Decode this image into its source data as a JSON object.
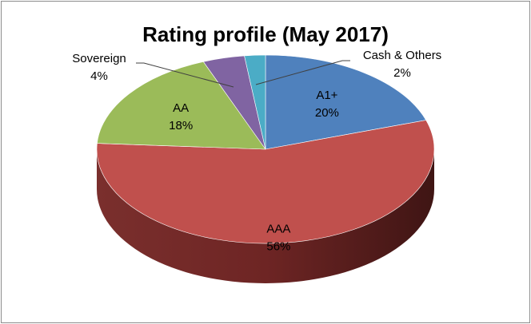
{
  "chart_data": {
    "type": "pie",
    "title": "Rating profile (May 2017)",
    "slices": [
      {
        "label": "A1+",
        "value": 20,
        "value_label": "20%",
        "color": "#4F81BD"
      },
      {
        "label": "AAA",
        "value": 56,
        "value_label": "56%",
        "color": "#C0504D"
      },
      {
        "label": "AA",
        "value": 18,
        "value_label": "18%",
        "color": "#9BBB59"
      },
      {
        "label": "Sovereign",
        "value": 4,
        "value_label": "4%",
        "color": "#8064A2"
      },
      {
        "label": "Cash & Others",
        "value": 2,
        "value_label": "2%",
        "color": "#4BACC6"
      }
    ],
    "legend": "none",
    "style": "3d"
  }
}
